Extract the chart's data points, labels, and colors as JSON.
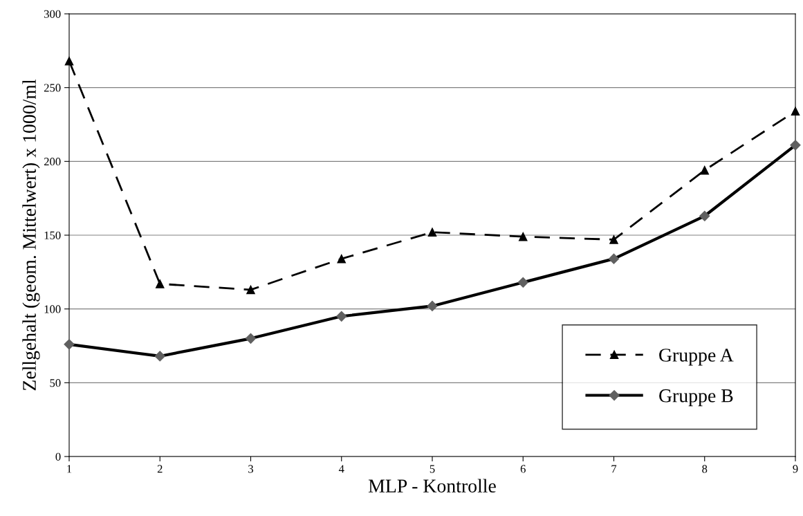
{
  "chart_data": {
    "type": "line",
    "xlabel": "MLP - Kontrolle",
    "ylabel": "Zellgehalt (geom. Mittelwert) x 1000/ml",
    "x": [
      1,
      2,
      3,
      4,
      5,
      6,
      7,
      8,
      9
    ],
    "series": [
      {
        "name": "Gruppe A",
        "color": "#000000",
        "marker": "triangle",
        "line_style": "dashed",
        "values": [
          268,
          117,
          113,
          134,
          152,
          149,
          147,
          194,
          234
        ]
      },
      {
        "name": "Gruppe B",
        "color": "#000000",
        "marker": "diamond",
        "line_style": "solid",
        "values": [
          76,
          68,
          80,
          95,
          102,
          118,
          134,
          163,
          211
        ]
      }
    ],
    "xlim": [
      1,
      9
    ],
    "xticks": [
      1,
      2,
      3,
      4,
      5,
      6,
      7,
      8,
      9
    ],
    "ylim": [
      0,
      300
    ],
    "yticks": [
      0,
      50,
      100,
      150,
      200,
      250,
      300
    ],
    "grid": "y",
    "legend": "bottom right"
  }
}
